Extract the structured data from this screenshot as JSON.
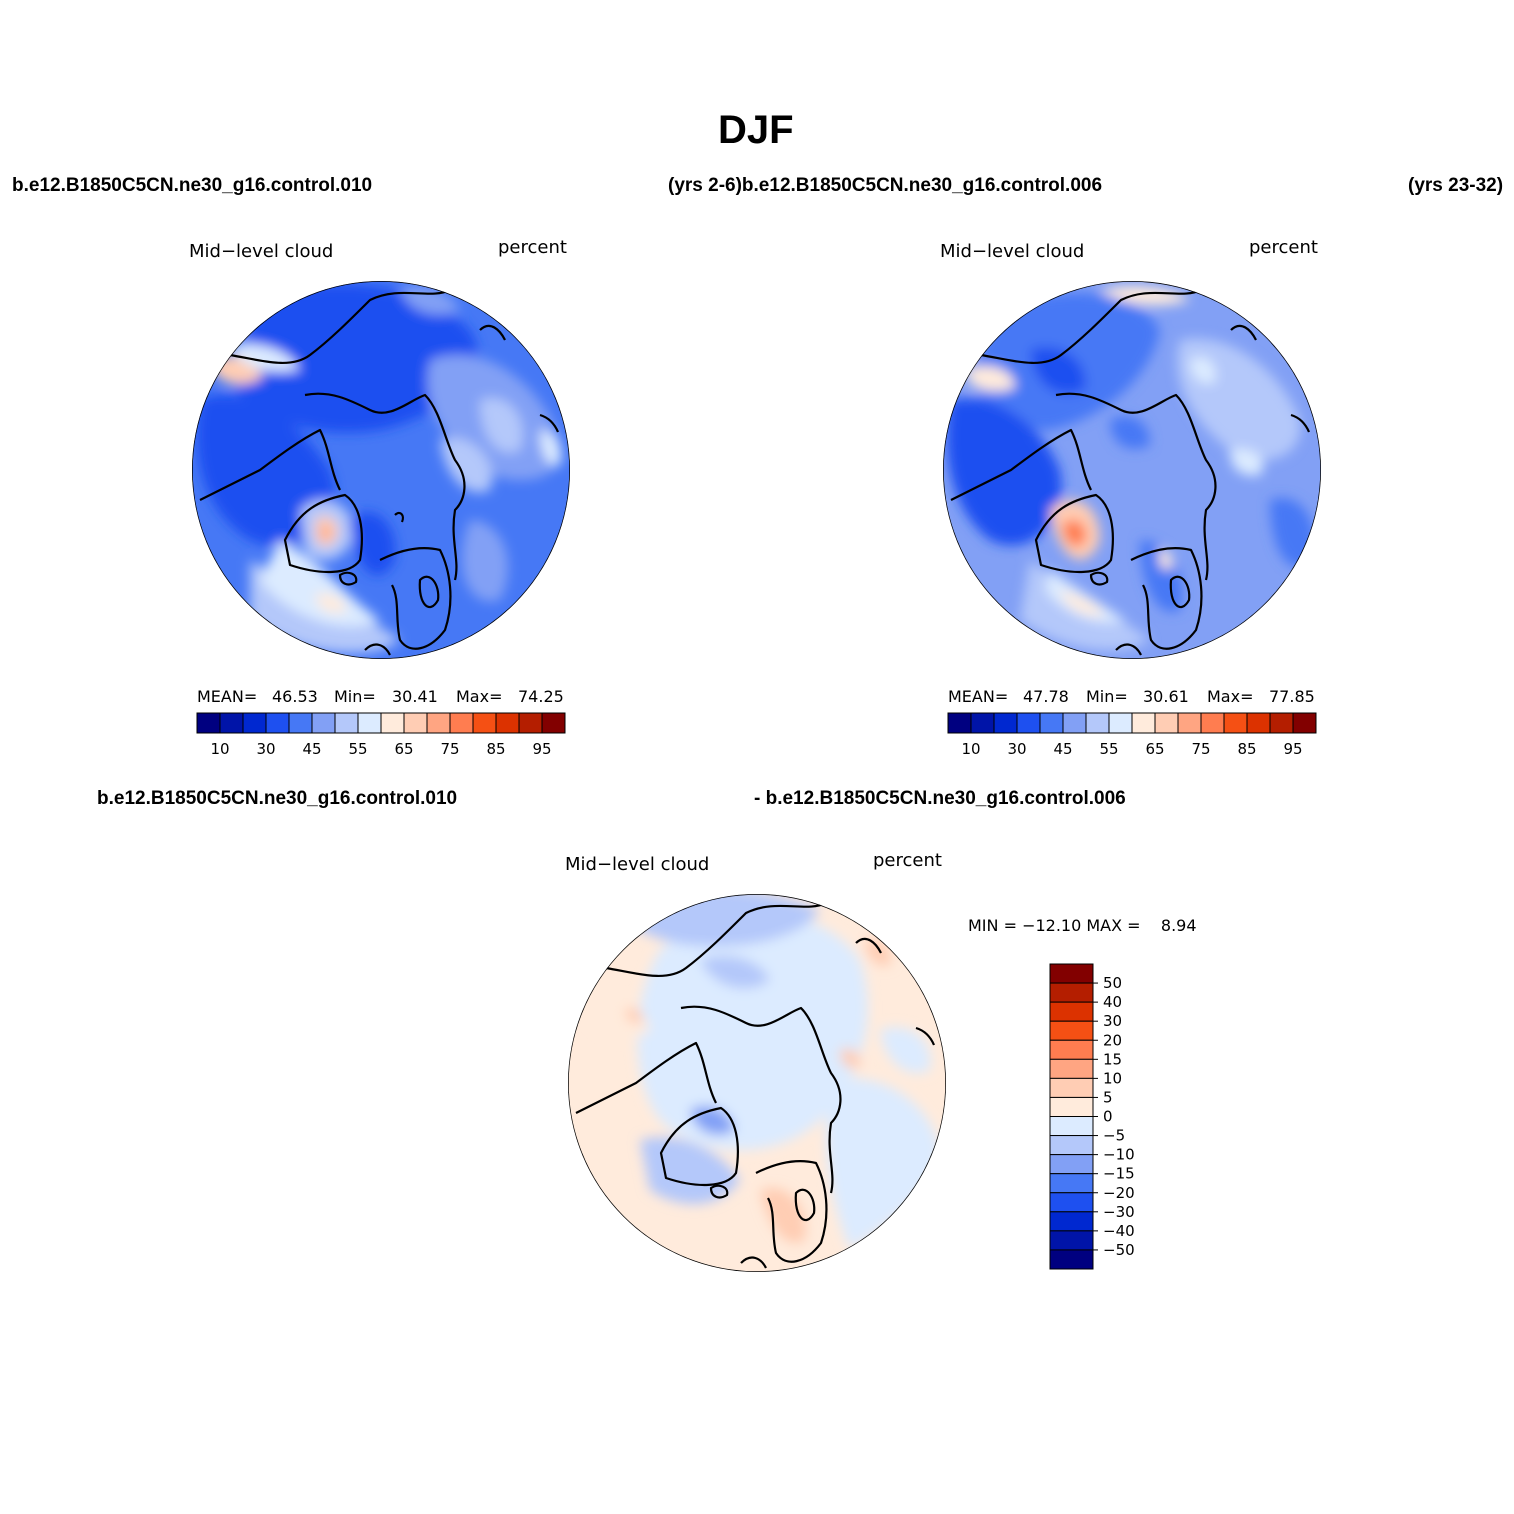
{
  "page_title": "DJF",
  "header": {
    "case_left": "b.e12.B1850C5CN.ne30_g16.control.010",
    "years_mid": "(yrs 2-6)b.e12.B1850C5CN.ne30_g16.control.006",
    "years_right": "(yrs 23-32)"
  },
  "diff_header": {
    "case_left": "b.e12.B1850C5CN.ne30_g16.control.010",
    "case_right": "- b.e12.B1850C5CN.ne30_g16.control.006"
  },
  "panels": [
    {
      "variable": "Mid−level cloud",
      "units": "percent",
      "stats": {
        "mean_label": "MEAN=",
        "mean": "46.53",
        "min_label": "Min=",
        "min": "30.41",
        "max_label": "Max=",
        "max": "74.25"
      }
    },
    {
      "variable": "Mid−level cloud",
      "units": "percent",
      "stats": {
        "mean_label": "MEAN=",
        "mean": "47.78",
        "min_label": "Min=",
        "min": "30.61",
        "max_label": "Max=",
        "max": "77.85"
      }
    }
  ],
  "diff_panel": {
    "variable": "Mid−level cloud",
    "units": "percent",
    "minmax": "MIN = −12.10 MAX =    8.94"
  },
  "colorbar_abs": {
    "colors": [
      "#000080",
      "#0014a8",
      "#0028d0",
      "#1e50f0",
      "#4678f5",
      "#82a0f5",
      "#b4c8fa",
      "#dcebff",
      "#ffebdc",
      "#ffcdb4",
      "#ffa582",
      "#ff7d50",
      "#f55014",
      "#dc3200",
      "#b41e00",
      "#820000"
    ],
    "ticks": [
      "10",
      "30",
      "45",
      "55",
      "65",
      "75",
      "85",
      "95"
    ]
  },
  "colorbar_diff": {
    "colors": [
      "#000080",
      "#0014a8",
      "#0028d0",
      "#1e50f0",
      "#4678f5",
      "#82a0f5",
      "#b4c8fa",
      "#dcebff",
      "#ffebdc",
      "#ffcdb4",
      "#ffa582",
      "#ff7d50",
      "#f55014",
      "#dc3200",
      "#b41e00",
      "#820000"
    ],
    "ticks": [
      "−50",
      "−40",
      "−30",
      "−20",
      "−15",
      "−10",
      "−5",
      "0",
      "5",
      "10",
      "15",
      "20",
      "30",
      "40",
      "50"
    ]
  }
}
